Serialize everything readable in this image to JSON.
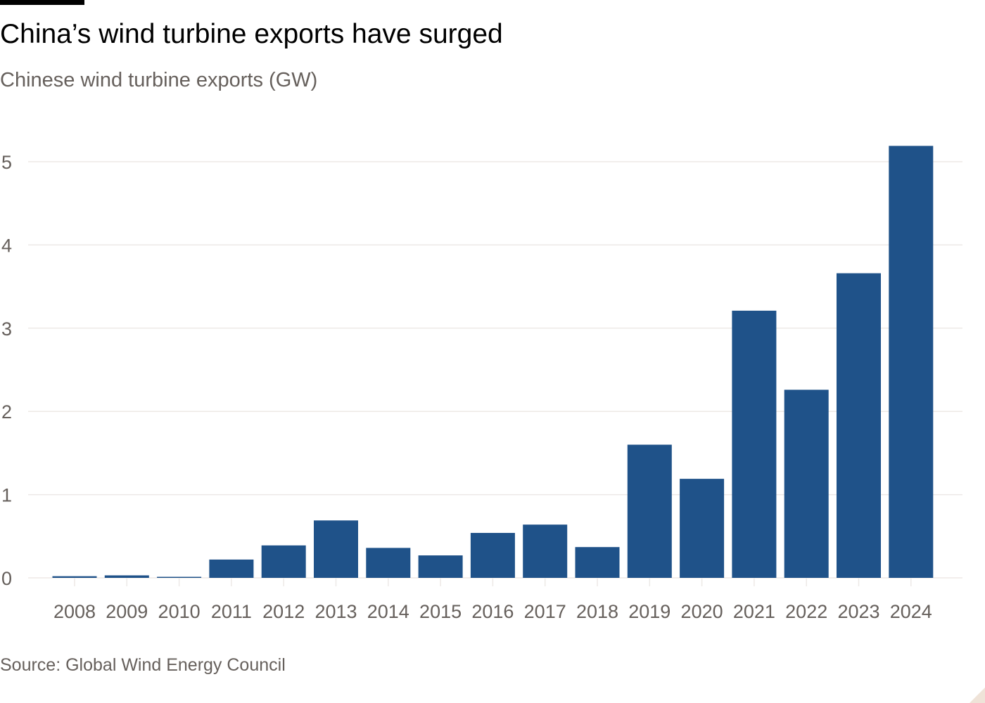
{
  "title": "China’s wind turbine exports have surged",
  "subtitle": "Chinese wind turbine exports (GW)",
  "source": "Source: Global Wind Energy Council",
  "colors": {
    "bar": "#1f5289",
    "grid": "#ede9e6",
    "text_muted": "#66605c"
  },
  "chart_data": {
    "type": "bar",
    "title": "China’s wind turbine exports have surged",
    "subtitle": "Chinese wind turbine exports (GW)",
    "xlabel": "",
    "ylabel": "",
    "ylim": [
      0,
      5.2
    ],
    "yticks": [
      0,
      1,
      2,
      3,
      4,
      5
    ],
    "grid": true,
    "categories": [
      "2008",
      "2009",
      "2010",
      "2011",
      "2012",
      "2013",
      "2014",
      "2015",
      "2016",
      "2017",
      "2018",
      "2019",
      "2020",
      "2021",
      "2022",
      "2023",
      "2024"
    ],
    "values": [
      0.02,
      0.03,
      0.01,
      0.22,
      0.39,
      0.69,
      0.36,
      0.27,
      0.54,
      0.64,
      0.37,
      1.6,
      1.19,
      3.21,
      2.26,
      3.66,
      5.19
    ]
  }
}
